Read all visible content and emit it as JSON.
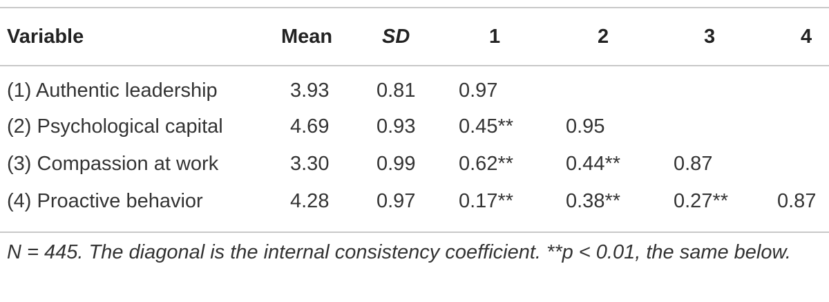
{
  "table": {
    "headers": {
      "variable": "Variable",
      "mean": "Mean",
      "sd": "SD",
      "c1": "1",
      "c2": "2",
      "c3": "3",
      "c4": "4"
    },
    "rows": [
      {
        "variable": "(1) Authentic leadership",
        "mean": "3.93",
        "sd": "0.81",
        "c1": "0.97",
        "c2": "",
        "c3": "",
        "c4": ""
      },
      {
        "variable": "(2) Psychological capital",
        "mean": "4.69",
        "sd": "0.93",
        "c1": "0.45**",
        "c2": "0.95",
        "c3": "",
        "c4": ""
      },
      {
        "variable": "(3) Compassion at work",
        "mean": "3.30",
        "sd": "0.99",
        "c1": "0.62**",
        "c2": "0.44**",
        "c3": "0.87",
        "c4": ""
      },
      {
        "variable": "(4) Proactive behavior",
        "mean": "4.28",
        "sd": "0.97",
        "c1": "0.17**",
        "c2": "0.38**",
        "c3": "0.27**",
        "c4": "0.87"
      }
    ]
  },
  "note": "N = 445. The diagonal is the internal consistency coefficient. **p < 0.01, the same below."
}
